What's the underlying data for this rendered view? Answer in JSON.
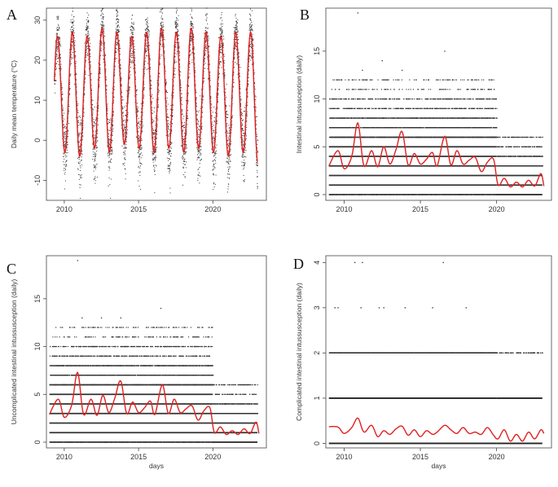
{
  "figure": {
    "panels": [
      "A",
      "B",
      "C",
      "D"
    ]
  },
  "chart_data": [
    {
      "id": "A",
      "type": "scatter",
      "title": "",
      "xlabel": "",
      "ylabel": "Daily mean temperature (°C)",
      "xlim": [
        2008.8,
        2023.6
      ],
      "ylim": [
        -15,
        33
      ],
      "xticks": [
        "2010",
        "2015",
        "2020"
      ],
      "yticks": [
        "-10",
        "0",
        "10",
        "20",
        "30"
      ],
      "seasonal_curve": {
        "period_years": 1,
        "peak_month": "July",
        "mean": 11.5,
        "amplitude": 14.5,
        "annual_peaks": [
          {
            "year": 2009,
            "value": 26
          },
          {
            "year": 2010,
            "value": 27
          },
          {
            "year": 2011,
            "value": 26
          },
          {
            "year": 2012,
            "value": 28
          },
          {
            "year": 2013,
            "value": 27
          },
          {
            "year": 2014,
            "value": 26
          },
          {
            "year": 2015,
            "value": 27
          },
          {
            "year": 2016,
            "value": 28
          },
          {
            "year": 2017,
            "value": 27
          },
          {
            "year": 2018,
            "value": 28
          },
          {
            "year": 2019,
            "value": 27
          },
          {
            "year": 2020,
            "value": 26
          },
          {
            "year": 2021,
            "value": 27
          },
          {
            "year": 2022,
            "value": 27
          }
        ],
        "annual_troughs": [
          {
            "year": 2009,
            "value": -4
          },
          {
            "year": 2010,
            "value": -3
          },
          {
            "year": 2011,
            "value": -4
          },
          {
            "year": 2012,
            "value": -2
          },
          {
            "year": 2013,
            "value": -3
          },
          {
            "year": 2014,
            "value": -1
          },
          {
            "year": 2015,
            "value": -2
          },
          {
            "year": 2016,
            "value": -3
          },
          {
            "year": 2017,
            "value": -2
          },
          {
            "year": 2018,
            "value": -3
          },
          {
            "year": 2019,
            "value": -2
          },
          {
            "year": 2020,
            "value": -3
          },
          {
            "year": 2021,
            "value": -4
          },
          {
            "year": 2022,
            "value": -3
          },
          {
            "year": 2023,
            "value": -6
          }
        ]
      },
      "point_spread": 3.5,
      "point_color": "#333333",
      "curve_color": "#e02020"
    },
    {
      "id": "B",
      "type": "scatter",
      "title": "",
      "xlabel": "",
      "ylabel": "Intestinal intussusception (daily)",
      "xlim": [
        2008.8,
        2023.6
      ],
      "ylim": [
        -0.6,
        19.5
      ],
      "xticks": [
        "2010",
        "2015",
        "2020"
      ],
      "yticks": [
        "0",
        "5",
        "10",
        "15"
      ],
      "count_levels": [
        {
          "value": 0,
          "pre_2020": "dense",
          "post_2020": "solid"
        },
        {
          "value": 1,
          "pre_2020": "solid",
          "post_2020": "solid"
        },
        {
          "value": 2,
          "pre_2020": "solid",
          "post_2020": "solid"
        },
        {
          "value": 3,
          "pre_2020": "solid",
          "post_2020": "dense"
        },
        {
          "value": 4,
          "pre_2020": "solid",
          "post_2020": "medium"
        },
        {
          "value": 5,
          "pre_2020": "solid",
          "post_2020": "sparse"
        },
        {
          "value": 6,
          "pre_2020": "dense",
          "post_2020": "sparse"
        },
        {
          "value": 7,
          "pre_2020": "medium",
          "post_2020": "none"
        },
        {
          "value": 8,
          "pre_2020": "medium",
          "post_2020": "none"
        },
        {
          "value": 9,
          "pre_2020": "sparse",
          "post_2020": "none"
        },
        {
          "value": 10,
          "pre_2020": "sparse",
          "post_2020": "none"
        },
        {
          "value": 11,
          "pre_2020": "rare",
          "post_2020": "none"
        },
        {
          "value": 12,
          "pre_2020": "rare",
          "post_2020": "none"
        }
      ],
      "outliers": [
        {
          "x": 2010.9,
          "y": 19
        },
        {
          "x": 2016.6,
          "y": 15
        },
        {
          "x": 2012.5,
          "y": 14
        },
        {
          "x": 2011.2,
          "y": 13
        },
        {
          "x": 2013.8,
          "y": 13
        },
        {
          "x": 2019.7,
          "y": 12
        }
      ],
      "smooth_curve": {
        "x": [
          2009.0,
          2009.6,
          2010.0,
          2010.5,
          2010.9,
          2011.3,
          2011.8,
          2012.2,
          2012.6,
          2013.0,
          2013.4,
          2013.8,
          2014.2,
          2014.6,
          2015.0,
          2015.4,
          2015.8,
          2016.1,
          2016.6,
          2017.0,
          2017.4,
          2017.8,
          2018.2,
          2018.6,
          2019.0,
          2019.4,
          2019.8,
          2020.1,
          2020.5,
          2020.9,
          2021.3,
          2021.7,
          2022.1,
          2022.5,
          2022.9,
          2023.1
        ],
        "y": [
          3.0,
          4.6,
          2.7,
          4.0,
          7.5,
          3.0,
          4.6,
          2.9,
          5.0,
          3.2,
          4.7,
          6.6,
          3.1,
          4.3,
          3.2,
          3.7,
          4.4,
          3.0,
          6.1,
          3.1,
          4.6,
          3.2,
          3.6,
          3.9,
          2.4,
          3.4,
          3.7,
          1.0,
          1.7,
          0.8,
          1.3,
          0.8,
          1.5,
          0.9,
          2.2,
          0.9
        ]
      },
      "point_color": "#333333",
      "curve_color": "#e02020"
    },
    {
      "id": "C",
      "type": "scatter",
      "title": "",
      "xlabel": "days",
      "ylabel": "Uncomplicated intestinal intussusception (daily)",
      "xlim": [
        2008.8,
        2023.6
      ],
      "ylim": [
        -0.6,
        19.5
      ],
      "xticks": [
        "2010",
        "2015",
        "2020"
      ],
      "yticks": [
        "0",
        "5",
        "10",
        "15"
      ],
      "count_levels": [
        {
          "value": 0,
          "pre_2020": "dense",
          "post_2020": "solid"
        },
        {
          "value": 1,
          "pre_2020": "solid",
          "post_2020": "solid"
        },
        {
          "value": 2,
          "pre_2020": "solid",
          "post_2020": "solid"
        },
        {
          "value": 3,
          "pre_2020": "solid",
          "post_2020": "dense"
        },
        {
          "value": 4,
          "pre_2020": "solid",
          "post_2020": "medium"
        },
        {
          "value": 5,
          "pre_2020": "solid",
          "post_2020": "sparse"
        },
        {
          "value": 6,
          "pre_2020": "dense",
          "post_2020": "sparse"
        },
        {
          "value": 7,
          "pre_2020": "medium",
          "post_2020": "none"
        },
        {
          "value": 8,
          "pre_2020": "medium",
          "post_2020": "none"
        },
        {
          "value": 9,
          "pre_2020": "sparse",
          "post_2020": "none"
        },
        {
          "value": 10,
          "pre_2020": "sparse",
          "post_2020": "none"
        },
        {
          "value": 11,
          "pre_2020": "rare",
          "post_2020": "none"
        },
        {
          "value": 12,
          "pre_2020": "rare",
          "post_2020": "none"
        }
      ],
      "outliers": [
        {
          "x": 2010.9,
          "y": 19
        },
        {
          "x": 2016.5,
          "y": 14
        },
        {
          "x": 2012.5,
          "y": 13
        },
        {
          "x": 2013.8,
          "y": 13
        },
        {
          "x": 2011.2,
          "y": 13
        },
        {
          "x": 2019.7,
          "y": 11
        }
      ],
      "smooth_curve": {
        "x": [
          2009.0,
          2009.6,
          2010.0,
          2010.5,
          2010.9,
          2011.3,
          2011.8,
          2012.2,
          2012.6,
          2013.0,
          2013.4,
          2013.8,
          2014.2,
          2014.6,
          2015.0,
          2015.4,
          2015.8,
          2016.1,
          2016.6,
          2017.0,
          2017.4,
          2017.8,
          2018.2,
          2018.6,
          2019.0,
          2019.4,
          2019.8,
          2020.1,
          2020.5,
          2020.9,
          2021.3,
          2021.7,
          2022.1,
          2022.5,
          2022.9,
          2023.1
        ],
        "y": [
          2.9,
          4.5,
          2.6,
          3.9,
          7.3,
          2.9,
          4.5,
          2.8,
          4.9,
          3.1,
          4.6,
          6.4,
          3.0,
          4.2,
          3.1,
          3.6,
          4.3,
          2.9,
          6.0,
          3.0,
          4.5,
          3.1,
          3.5,
          3.8,
          2.3,
          3.3,
          3.6,
          1.0,
          1.6,
          0.8,
          1.2,
          0.8,
          1.4,
          0.9,
          2.1,
          0.9
        ]
      },
      "point_color": "#333333",
      "curve_color": "#e02020"
    },
    {
      "id": "D",
      "type": "scatter",
      "title": "",
      "xlabel": "days",
      "ylabel": "Complicated intestinal intussusception (daily)",
      "xlim": [
        2008.8,
        2023.6
      ],
      "ylim": [
        -0.1,
        4.15
      ],
      "xticks": [
        "2010",
        "2015",
        "2020"
      ],
      "yticks": [
        "0",
        "1",
        "2",
        "3",
        "4"
      ],
      "count_levels": [
        {
          "value": 0,
          "pre_2020": "solid",
          "post_2020": "solid"
        },
        {
          "value": 1,
          "pre_2020": "solid",
          "post_2020": "solid"
        },
        {
          "value": 2,
          "pre_2020": "dense",
          "post_2020": "sparse"
        }
      ],
      "outliers": [
        {
          "x": 2009.4,
          "y": 3
        },
        {
          "x": 2009.6,
          "y": 3
        },
        {
          "x": 2011.1,
          "y": 3
        },
        {
          "x": 2012.3,
          "y": 3
        },
        {
          "x": 2012.6,
          "y": 3
        },
        {
          "x": 2014.0,
          "y": 3
        },
        {
          "x": 2015.8,
          "y": 3
        },
        {
          "x": 2018.0,
          "y": 3
        },
        {
          "x": 2010.7,
          "y": 4
        },
        {
          "x": 2011.2,
          "y": 4
        },
        {
          "x": 2016.5,
          "y": 4
        }
      ],
      "smooth_curve": {
        "x": [
          2009.0,
          2009.6,
          2010.0,
          2010.5,
          2010.9,
          2011.3,
          2011.8,
          2012.2,
          2012.6,
          2013.0,
          2013.4,
          2013.8,
          2014.2,
          2014.6,
          2015.0,
          2015.4,
          2015.8,
          2016.1,
          2016.6,
          2017.0,
          2017.4,
          2017.8,
          2018.2,
          2018.6,
          2019.0,
          2019.4,
          2019.8,
          2020.1,
          2020.5,
          2020.9,
          2021.3,
          2021.7,
          2022.1,
          2022.5,
          2022.9,
          2023.1
        ],
        "y": [
          0.37,
          0.36,
          0.22,
          0.35,
          0.56,
          0.25,
          0.4,
          0.15,
          0.28,
          0.2,
          0.32,
          0.38,
          0.18,
          0.3,
          0.15,
          0.28,
          0.2,
          0.25,
          0.4,
          0.3,
          0.22,
          0.35,
          0.22,
          0.25,
          0.2,
          0.35,
          0.18,
          0.1,
          0.3,
          0.05,
          0.2,
          0.05,
          0.25,
          0.1,
          0.3,
          0.22
        ]
      },
      "point_color": "#222222",
      "curve_color": "#e02020"
    }
  ]
}
